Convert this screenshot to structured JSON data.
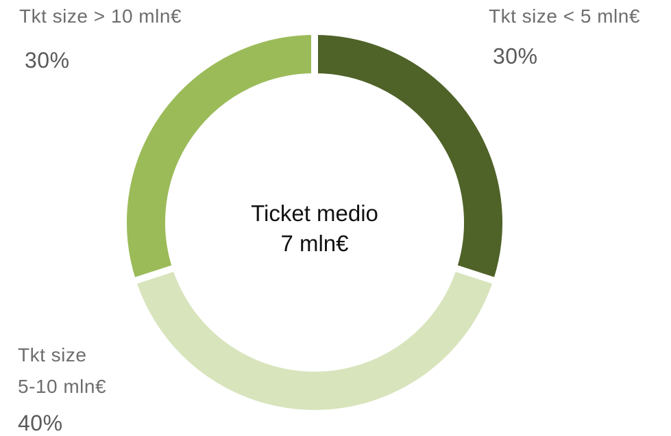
{
  "chart_data": {
    "type": "pie",
    "variant": "donut",
    "center_label": [
      "Ticket medio",
      "7 mln€"
    ],
    "slices": [
      {
        "name_lines": [
          "Tkt size < 5 mln€"
        ],
        "value_label": "30%",
        "value": 30,
        "color": "#4f6228"
      },
      {
        "name_lines": [
          "Tkt size",
          "5-10 mln€"
        ],
        "value_label": "40%",
        "value": 40,
        "color": "#d8e4bc"
      },
      {
        "name_lines": [
          "Tkt size > 10 mln€"
        ],
        "value_label": "30%",
        "value": 30,
        "color": "#9bbb59"
      }
    ],
    "legend": "none",
    "start": "top",
    "direction": "clockwise"
  }
}
